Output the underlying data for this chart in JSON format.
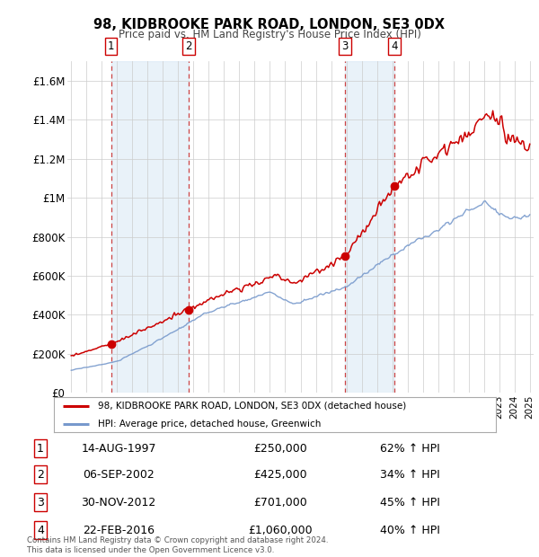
{
  "title": "98, KIDBROOKE PARK ROAD, LONDON, SE3 0DX",
  "subtitle": "Price paid vs. HM Land Registry's House Price Index (HPI)",
  "ylim": [
    0,
    1700000
  ],
  "yticks": [
    0,
    200000,
    400000,
    600000,
    800000,
    1000000,
    1200000,
    1400000,
    1600000
  ],
  "ytick_labels": [
    "£0",
    "£200K",
    "£400K",
    "£600K",
    "£800K",
    "£1M",
    "£1.2M",
    "£1.4M",
    "£1.6M"
  ],
  "xlim_start": 1994.75,
  "xlim_end": 2025.25,
  "sales": [
    {
      "date_num": 1997.617,
      "price": 250000,
      "label": "1"
    },
    {
      "date_num": 2002.678,
      "price": 425000,
      "label": "2"
    },
    {
      "date_num": 2012.917,
      "price": 701000,
      "label": "3"
    },
    {
      "date_num": 2016.139,
      "price": 1060000,
      "label": "4"
    }
  ],
  "sale_info": [
    {
      "num": "1",
      "date": "14-AUG-1997",
      "price": "£250,000",
      "hpi": "62% ↑ HPI"
    },
    {
      "num": "2",
      "date": "06-SEP-2002",
      "price": "£425,000",
      "hpi": "34% ↑ HPI"
    },
    {
      "num": "3",
      "date": "30-NOV-2012",
      "price": "£701,000",
      "hpi": "45% ↑ HPI"
    },
    {
      "num": "4",
      "date": "22-FEB-2016",
      "price": "£1,060,000",
      "hpi": "40% ↑ HPI"
    }
  ],
  "line_color_red": "#cc0000",
  "line_color_blue": "#7799cc",
  "bg_color": "#ffffff",
  "grid_color": "#cccccc",
  "shade_color": "#d8e8f5",
  "legend_text_red": "98, KIDBROOKE PARK ROAD, LONDON, SE3 0DX (detached house)",
  "legend_text_blue": "HPI: Average price, detached house, Greenwich",
  "footer": "Contains HM Land Registry data © Crown copyright and database right 2024.\nThis data is licensed under the Open Government Licence v3.0."
}
